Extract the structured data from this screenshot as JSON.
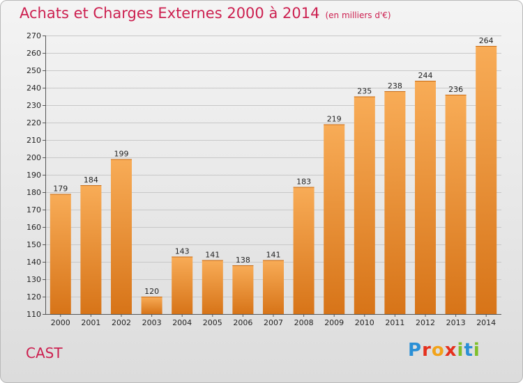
{
  "title": "Achats et Charges Externes 2000 à 2014",
  "unit": "(en milliers d'€)",
  "commune": "CAST",
  "logo": {
    "letters": [
      "P",
      "r",
      "o",
      "x",
      "i",
      "t",
      "i"
    ],
    "colors": [
      "#2a8fd6",
      "#e5301d",
      "#f2a31a",
      "#e5301d",
      "#7fbf2a",
      "#2a8fd6",
      "#7fbf2a"
    ]
  },
  "colors": {
    "bar_light": "#f8ac57",
    "bar_dark": "#d77418",
    "title": "#cc1f4f"
  },
  "chart_data": {
    "type": "bar",
    "title": "Achats et Charges Externes 2000 à 2014",
    "categories": [
      "2000",
      "2001",
      "2002",
      "2003",
      "2004",
      "2005",
      "2006",
      "2007",
      "2008",
      "2009",
      "2010",
      "2011",
      "2012",
      "2013",
      "2014"
    ],
    "values": [
      179,
      184,
      199,
      120,
      143,
      141,
      138,
      141,
      183,
      219,
      235,
      238,
      244,
      236,
      264
    ],
    "ylim": [
      110,
      270
    ],
    "yticks": [
      110,
      120,
      130,
      140,
      150,
      160,
      170,
      180,
      190,
      200,
      210,
      220,
      230,
      240,
      250,
      260,
      270
    ],
    "grid": true,
    "legend": "none"
  }
}
